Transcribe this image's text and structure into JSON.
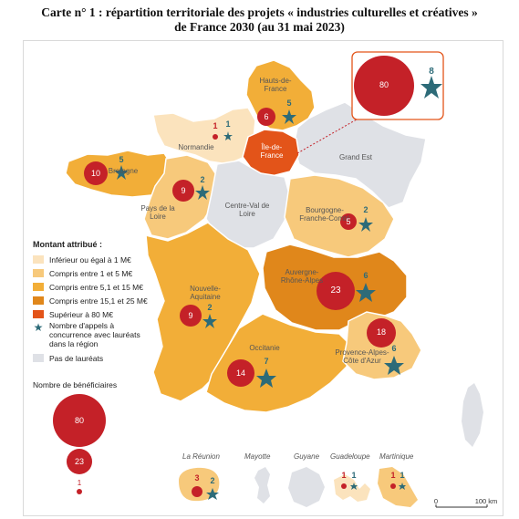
{
  "title_line1": "Carte n° 1 : répartition territoriale des projets « industries culturelles et créatives »",
  "title_line2": "de France 2030 (au 31 mai 2023)",
  "colors": {
    "lt1": "#fbe3bd",
    "c1_5": "#f7c97b",
    "c5_15": "#f2ae38",
    "c15_25": "#e0871b",
    "c80": "#e35419",
    "none": "#dfe1e6",
    "bubble": "#c42128",
    "star": "#2d6b78"
  },
  "legend": {
    "title": "Montant attribué :",
    "items": [
      {
        "label": "Inférieur ou égal à 1 M€"
      },
      {
        "label": "Compris entre 1 et 5 M€"
      },
      {
        "label": "Compris entre 5,1 et 15 M€"
      },
      {
        "label": "Compris entre 15,1 et 25 M€"
      },
      {
        "label": "Supérieur à 80 M€"
      }
    ],
    "star_label": "Nombre d'appels à concurrence avec lauréats dans la région",
    "none_label": "Pas de lauréats"
  },
  "beneficiaires": {
    "title": "Nombre de bénéficiaires",
    "values": [
      "80",
      "23",
      "1"
    ]
  },
  "regions": {
    "hdf": {
      "name": "Hauts-de-France",
      "benef": "6",
      "appels": "5"
    },
    "nor": {
      "name": "Normandie",
      "benef": "1",
      "appels": "1"
    },
    "idf": {
      "name": "Île-de-France",
      "benef": "80",
      "appels": "8"
    },
    "ge": {
      "name": "Grand Est"
    },
    "bre": {
      "name": "Bretagne",
      "benef": "10",
      "appels": "5"
    },
    "pdl": {
      "name": "Pays de la Loire",
      "benef": "9",
      "appels": "2"
    },
    "cvl": {
      "name": "Centre-Val de Loire"
    },
    "bfc": {
      "name": "Bourgogne-Franche-Comté",
      "benef": "5",
      "appels": "2"
    },
    "na": {
      "name": "Nouvelle-Aquitaine",
      "benef": "9",
      "appels": "2"
    },
    "ara": {
      "name": "Auvergne-Rhône-Alpes",
      "benef": "23",
      "appels": "6"
    },
    "occ": {
      "name": "Occitanie",
      "benef": "14",
      "appels": "7"
    },
    "paca": {
      "name": "Provence-Alpes-Côte d'Azur",
      "benef": "18",
      "appels": "6"
    },
    "reu": {
      "name": "La Réunion",
      "benef": "3",
      "appels": "2"
    },
    "may": {
      "name": "Mayotte"
    },
    "guy": {
      "name": "Guyane"
    },
    "gua": {
      "name": "Guadeloupe",
      "benef": "1",
      "appels": "1"
    },
    "mar": {
      "name": "Martinique",
      "benef": "1",
      "appels": "1"
    }
  },
  "scale": {
    "start": "0",
    "end": "100 km"
  }
}
